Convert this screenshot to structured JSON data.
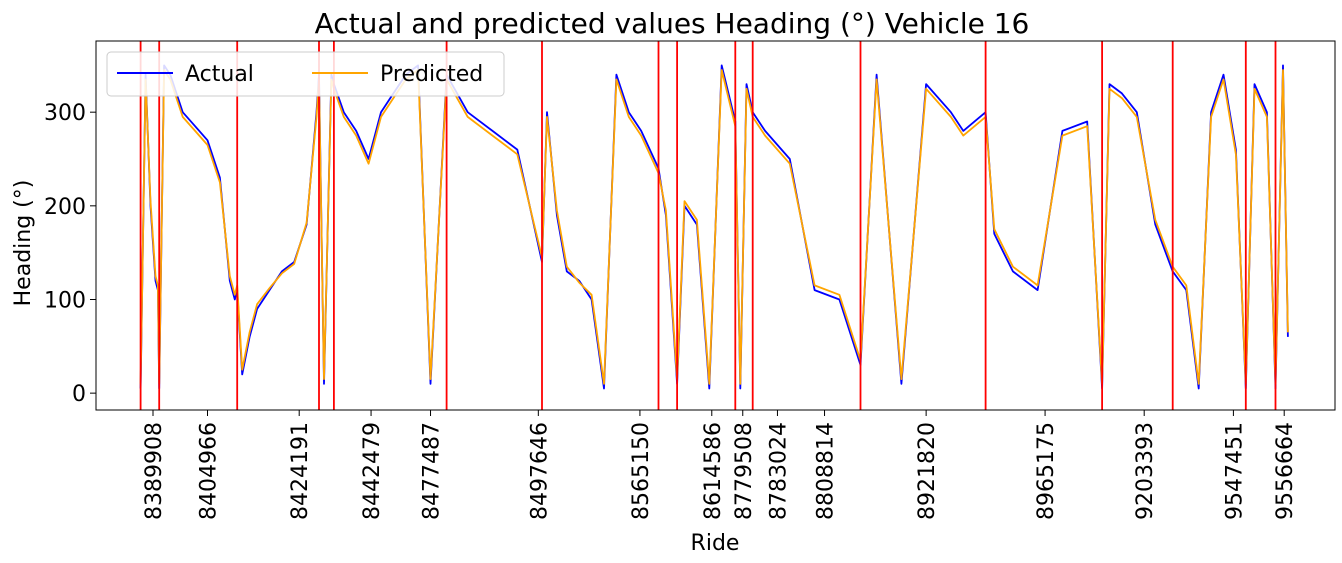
{
  "chart_data": {
    "type": "line",
    "title": "Actual and predicted values Heading (°) Vehicle 16",
    "xlabel": "Ride",
    "ylabel": "Heading (°)",
    "ylim": [
      -18,
      376
    ],
    "yticks": [
      0,
      100,
      200,
      300
    ],
    "xlim": [
      0,
      1000
    ],
    "xticks": [
      {
        "pos": 46,
        "label": "8389908"
      },
      {
        "pos": 90,
        "label": "8404966"
      },
      {
        "pos": 164,
        "label": "8424191"
      },
      {
        "pos": 222,
        "label": "8442479"
      },
      {
        "pos": 270,
        "label": "8477487"
      },
      {
        "pos": 357,
        "label": "8497646"
      },
      {
        "pos": 439,
        "label": "8565150"
      },
      {
        "pos": 497,
        "label": "8614586"
      },
      {
        "pos": 522,
        "label": "8779508"
      },
      {
        "pos": 550,
        "label": "8783024"
      },
      {
        "pos": 588,
        "label": "8808814"
      },
      {
        "pos": 670,
        "label": "8921820"
      },
      {
        "pos": 766,
        "label": "8965175"
      },
      {
        "pos": 846,
        "label": "9203393"
      },
      {
        "pos": 918,
        "label": "9547451"
      },
      {
        "pos": 959,
        "label": "9556664"
      }
    ],
    "ride_boundaries": [
      36,
      51,
      114,
      180,
      192,
      283,
      360,
      454,
      469,
      516,
      530,
      617,
      718,
      812,
      869,
      928,
      952
    ],
    "legend_position": "top-left",
    "grid": false,
    "colors": {
      "actual": "#0000ff",
      "predicted": "#ffa500",
      "boundary": "#ff0000"
    },
    "series": [
      {
        "name": "Actual",
        "color": "#0000ff",
        "x": [
          36,
          40,
          44,
          48,
          50,
          51,
          55,
          60,
          70,
          80,
          90,
          100,
          108,
          112,
          114,
          118,
          124,
          130,
          140,
          150,
          160,
          170,
          178,
          180,
          184,
          190,
          192,
          200,
          210,
          220,
          230,
          240,
          250,
          260,
          270,
          283,
          300,
          320,
          340,
          360,
          364,
          372,
          380,
          390,
          400,
          410,
          420,
          430,
          440,
          454,
          460,
          469,
          475,
          485,
          495,
          505,
          516,
          520,
          525,
          530,
          540,
          560,
          580,
          600,
          617,
          630,
          650,
          670,
          690,
          700,
          718,
          725,
          740,
          760,
          780,
          800,
          812,
          818,
          828,
          840,
          855,
          869,
          880,
          890,
          900,
          910,
          920,
          928,
          935,
          945,
          952,
          958,
          962
        ],
        "y": [
          5,
          340,
          200,
          120,
          110,
          5,
          350,
          340,
          300,
          285,
          270,
          230,
          120,
          100,
          110,
          20,
          60,
          90,
          110,
          130,
          140,
          180,
          300,
          340,
          10,
          340,
          330,
          300,
          280,
          250,
          300,
          320,
          340,
          350,
          10,
          340,
          300,
          280,
          260,
          140,
          300,
          190,
          130,
          120,
          100,
          5,
          340,
          300,
          280,
          240,
          190,
          10,
          200,
          180,
          5,
          350,
          290,
          5,
          330,
          300,
          280,
          250,
          110,
          100,
          30,
          340,
          10,
          330,
          300,
          280,
          300,
          170,
          130,
          110,
          280,
          290,
          5,
          330,
          320,
          300,
          180,
          130,
          110,
          5,
          300,
          340,
          260,
          5,
          330,
          300,
          5,
          350,
          60
        ]
      },
      {
        "name": "Predicted",
        "color": "#ffa500",
        "x": [
          36,
          40,
          44,
          48,
          50,
          51,
          55,
          60,
          70,
          80,
          90,
          100,
          108,
          112,
          114,
          118,
          124,
          130,
          140,
          150,
          160,
          170,
          178,
          180,
          184,
          190,
          192,
          200,
          210,
          220,
          230,
          240,
          250,
          260,
          270,
          283,
          300,
          320,
          340,
          360,
          364,
          372,
          380,
          390,
          400,
          410,
          420,
          430,
          440,
          454,
          460,
          469,
          475,
          485,
          495,
          505,
          516,
          520,
          525,
          530,
          540,
          560,
          580,
          600,
          617,
          630,
          650,
          670,
          690,
          700,
          718,
          725,
          740,
          760,
          780,
          800,
          812,
          818,
          828,
          840,
          855,
          869,
          880,
          890,
          900,
          910,
          920,
          928,
          935,
          945,
          952,
          958,
          962
        ],
        "y": [
          10,
          335,
          205,
          125,
          115,
          10,
          345,
          335,
          295,
          280,
          265,
          225,
          125,
          105,
          115,
          25,
          65,
          95,
          112,
          128,
          138,
          182,
          295,
          335,
          15,
          335,
          325,
          295,
          275,
          245,
          295,
          315,
          335,
          345,
          15,
          335,
          295,
          275,
          255,
          145,
          295,
          195,
          135,
          118,
          105,
          10,
          335,
          295,
          275,
          235,
          195,
          15,
          205,
          185,
          10,
          345,
          285,
          10,
          325,
          295,
          275,
          245,
          115,
          105,
          35,
          335,
          15,
          325,
          295,
          275,
          295,
          175,
          135,
          115,
          275,
          285,
          10,
          325,
          315,
          295,
          185,
          135,
          115,
          10,
          295,
          335,
          255,
          10,
          325,
          295,
          10,
          345,
          65
        ]
      }
    ]
  }
}
